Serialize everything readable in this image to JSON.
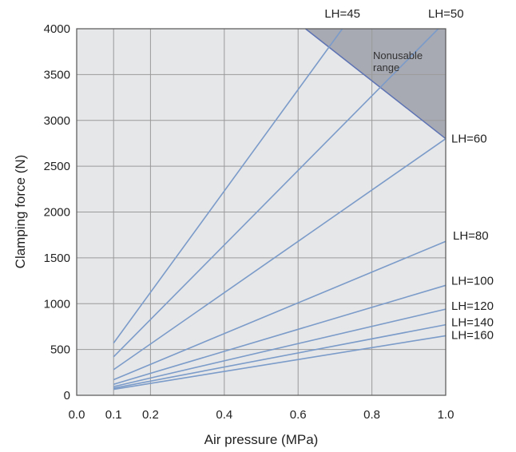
{
  "chart_data": {
    "type": "line",
    "xlabel": "Air pressure (MPa)",
    "ylabel": "Clamping force (N)",
    "xlim": [
      0.0,
      1.0
    ],
    "ylim": [
      0,
      4000
    ],
    "xticks": [
      0.0,
      0.1,
      0.2,
      0.4,
      0.6,
      0.8,
      1.0
    ],
    "xtick_labels": [
      "0.0",
      "0.1",
      "0.2",
      "0.4",
      "0.6",
      "0.8",
      "1.0"
    ],
    "yticks": [
      0,
      500,
      1000,
      1500,
      2000,
      2500,
      3000,
      3500,
      4000
    ],
    "ytick_labels": [
      "0",
      "500",
      "1000",
      "1500",
      "2000",
      "2500",
      "3000",
      "3500",
      "4000"
    ],
    "grid": true,
    "colors": {
      "plot_background": "#e6e7e9",
      "grid": "#9a9a9a",
      "series_line": "#7b9bc9",
      "nonusable_fill": "#a7a9b3",
      "nonusable_edge": "#5d73b3"
    },
    "nonusable_region": {
      "label_lines": [
        "Nonusable",
        "range"
      ],
      "boundary": [
        [
          0.62,
          4000
        ],
        [
          1.0,
          2800
        ]
      ]
    },
    "series": [
      {
        "name": "LH=45",
        "x": [
          0.1,
          0.72
        ],
        "y": [
          570,
          4000
        ]
      },
      {
        "name": "LH=50",
        "x": [
          0.1,
          0.98
        ],
        "y": [
          420,
          4000
        ]
      },
      {
        "name": "LH=60",
        "x": [
          0.1,
          1.0
        ],
        "y": [
          280,
          2800
        ]
      },
      {
        "name": "LH=80",
        "x": [
          0.1,
          1.0
        ],
        "y": [
          170,
          1680
        ]
      },
      {
        "name": "LH=100",
        "x": [
          0.1,
          1.0
        ],
        "y": [
          120,
          1200
        ]
      },
      {
        "name": "LH=120",
        "x": [
          0.1,
          1.0
        ],
        "y": [
          95,
          940
        ]
      },
      {
        "name": "LH=140",
        "x": [
          0.1,
          1.0
        ],
        "y": [
          78,
          770
        ]
      },
      {
        "name": "LH=160",
        "x": [
          0.1,
          1.0
        ],
        "y": [
          65,
          650
        ]
      }
    ]
  }
}
